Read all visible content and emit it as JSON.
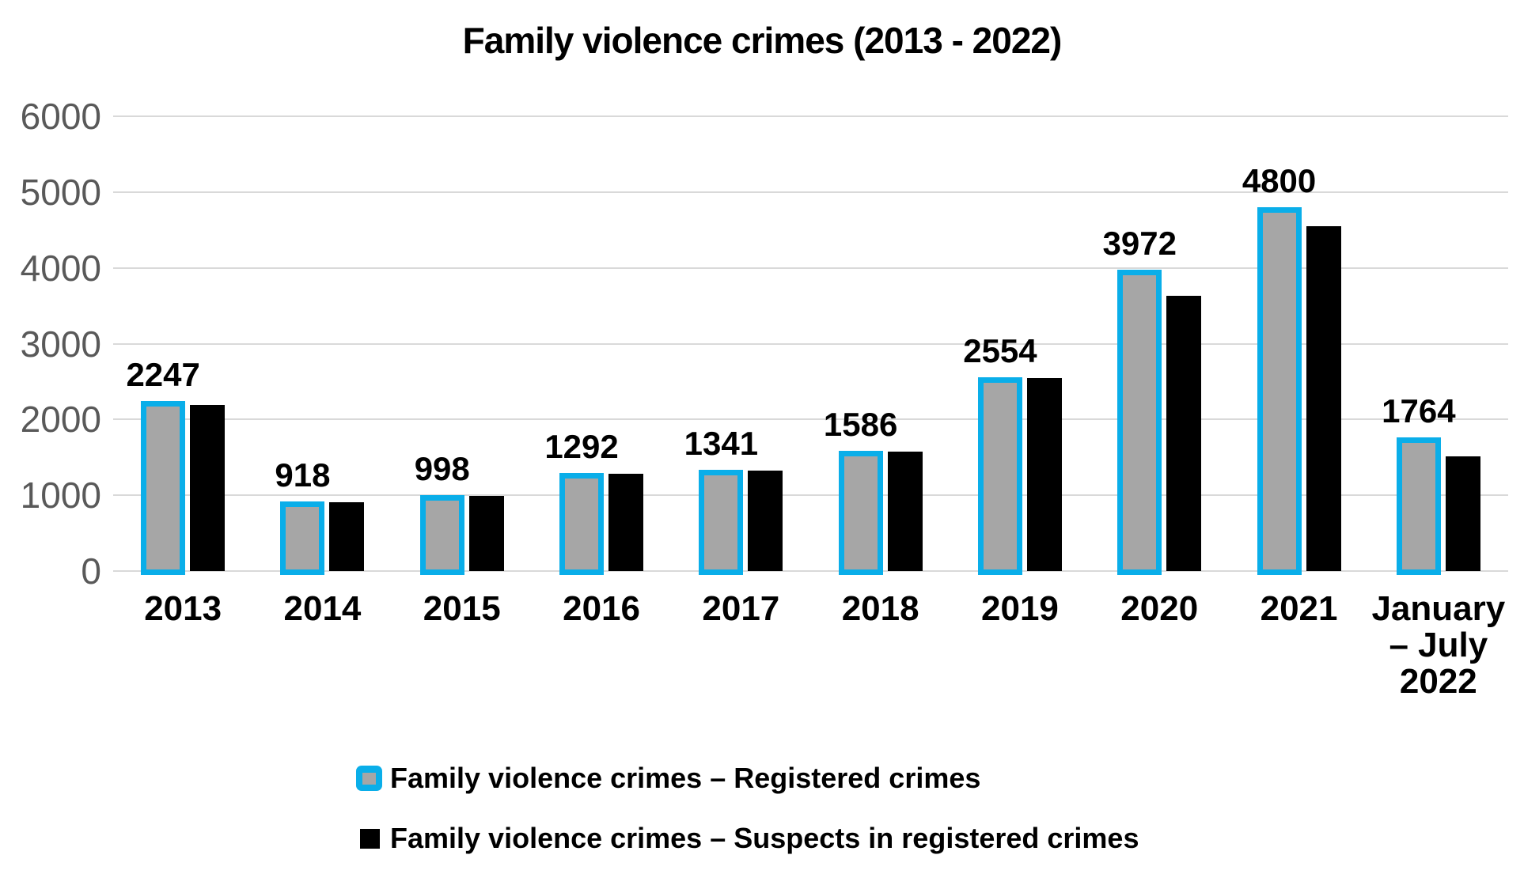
{
  "chart_data": {
    "type": "bar",
    "title": "Family violence crimes (2013 - 2022)",
    "categories": [
      "2013",
      "2014",
      "2015",
      "2016",
      "2017",
      "2018",
      "2019",
      "2020",
      "2021",
      "January – July 2022"
    ],
    "category_label_lines": [
      [
        "2013"
      ],
      [
        "2014"
      ],
      [
        "2015"
      ],
      [
        "2016"
      ],
      [
        "2017"
      ],
      [
        "2018"
      ],
      [
        "2019"
      ],
      [
        "2020"
      ],
      [
        "2021"
      ],
      [
        "January",
        "– July",
        "2022"
      ]
    ],
    "series": [
      {
        "name": "Family violence crimes – Registered crimes",
        "values": [
          2247,
          918,
          998,
          1292,
          1341,
          1586,
          2554,
          3972,
          4800,
          1764
        ],
        "data_labels": [
          "2247",
          "918",
          "998",
          "1292",
          "1341",
          "1586",
          "2554",
          "3972",
          "4800",
          "1764"
        ],
        "fill": "#A6A6A6",
        "border": "#0AAEE9"
      },
      {
        "name": "Family violence crimes – Suspects in registered crimes",
        "values": [
          2190,
          905,
          990,
          1285,
          1330,
          1575,
          2550,
          3630,
          4550,
          1515
        ],
        "values_estimated": true,
        "data_labels": [],
        "fill": "#000000",
        "border": null
      }
    ],
    "xlabel": "",
    "ylabel": "",
    "ylim": [
      0,
      6000
    ],
    "yticks": [
      "0",
      "1000",
      "2000",
      "3000",
      "4000",
      "5000",
      "6000"
    ],
    "grid": "horizontal",
    "legend_position": "bottom-left"
  },
  "colors": {
    "background": "#FFFFFF",
    "gridline": "#D9D9D9",
    "y_axis_labels": "#595959",
    "text": "#000000",
    "bar_fill_gray": "#A6A6A6",
    "bar_border_cyan": "#0AAEE9",
    "bar_black": "#000000"
  }
}
